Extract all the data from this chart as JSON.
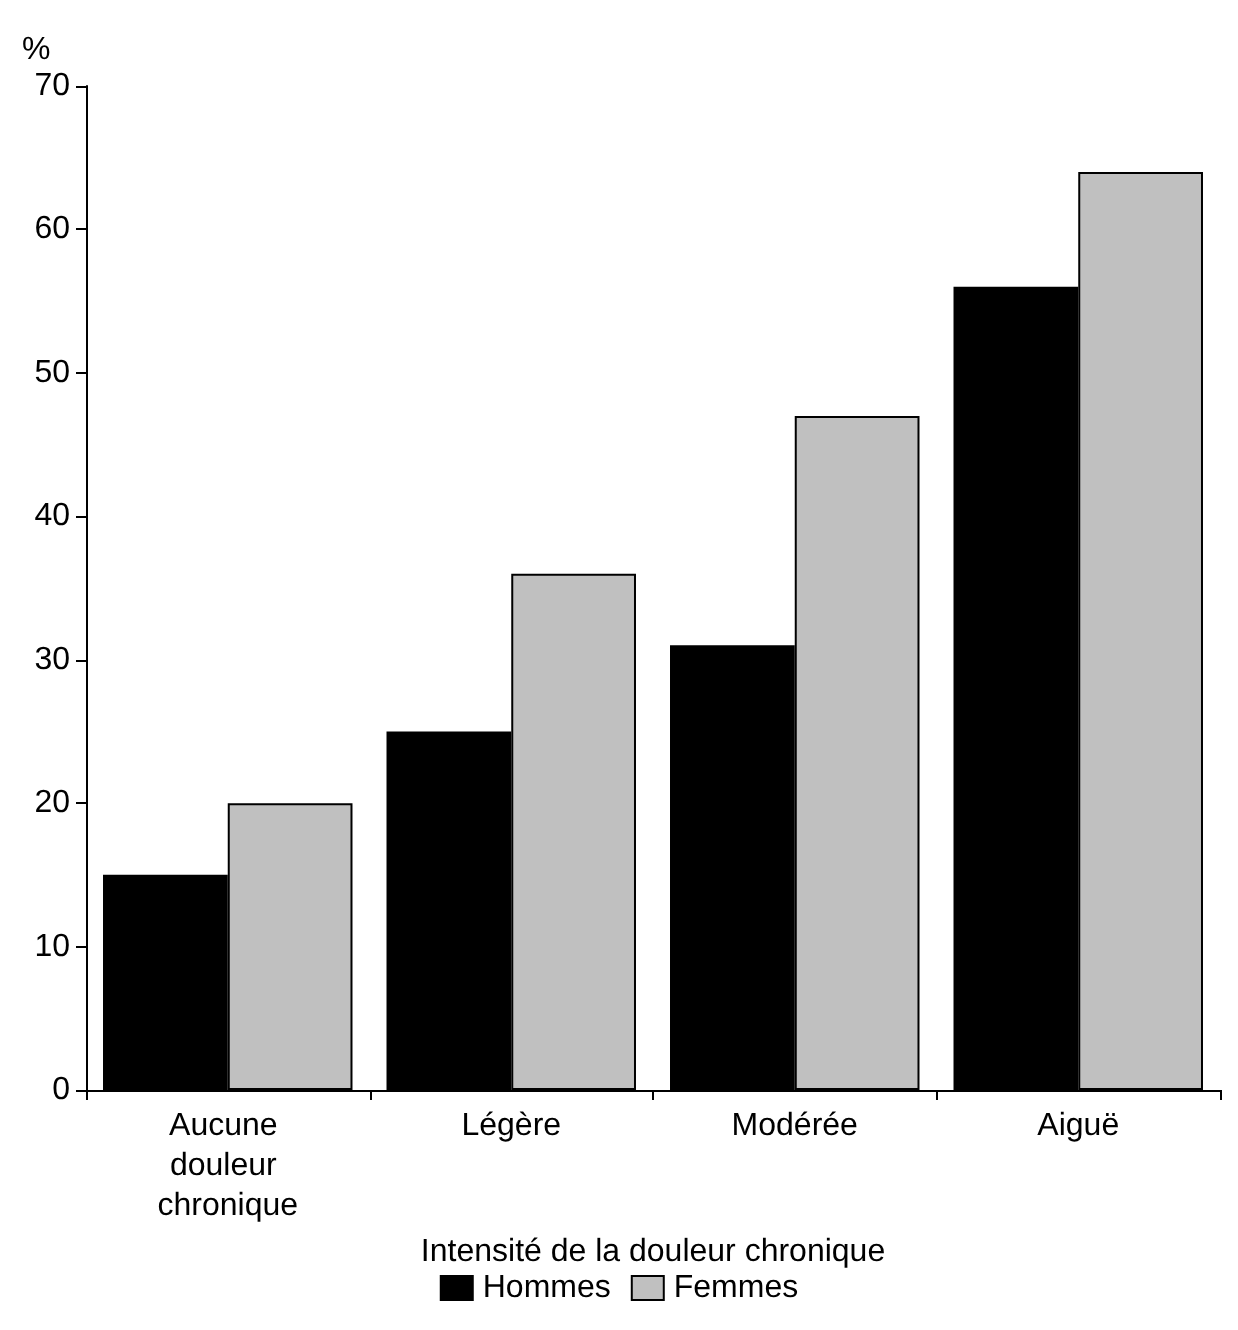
{
  "chart_data": {
    "type": "bar",
    "xlabel": "Intensité de la douleur chronique",
    "ylabel": "%",
    "categories": [
      "Aucune douleur chronique",
      "Légère",
      "Modérée",
      "Aiguë"
    ],
    "series": [
      {
        "name": "Hommes",
        "color": "#000000",
        "values": [
          15,
          25,
          31,
          56
        ]
      },
      {
        "name": "Femmes",
        "color": "#c0c0c0",
        "values": [
          20,
          36,
          47,
          64
        ]
      }
    ],
    "ylim": [
      0,
      70
    ],
    "yticks": [
      0,
      10,
      20,
      30,
      40,
      50,
      60,
      70
    ],
    "grid": false,
    "legend": "bottom"
  }
}
